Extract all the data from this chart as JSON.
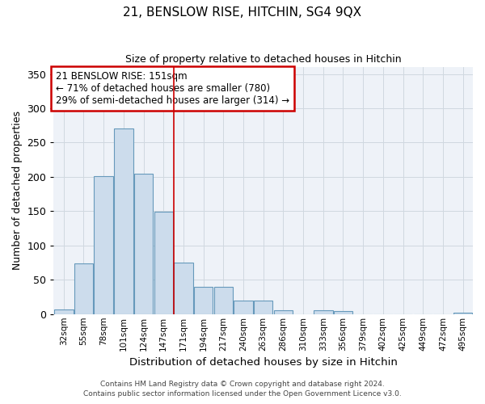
{
  "title1": "21, BENSLOW RISE, HITCHIN, SG4 9QX",
  "title2": "Size of property relative to detached houses in Hitchin",
  "xlabel": "Distribution of detached houses by size in Hitchin",
  "ylabel": "Number of detached properties",
  "categories": [
    "32sqm",
    "55sqm",
    "78sqm",
    "101sqm",
    "124sqm",
    "147sqm",
    "171sqm",
    "194sqm",
    "217sqm",
    "240sqm",
    "263sqm",
    "286sqm",
    "310sqm",
    "333sqm",
    "356sqm",
    "379sqm",
    "402sqm",
    "425sqm",
    "449sqm",
    "472sqm",
    "495sqm"
  ],
  "values": [
    7,
    74,
    201,
    271,
    205,
    149,
    75,
    40,
    40,
    20,
    20,
    6,
    0,
    6,
    4,
    0,
    0,
    0,
    0,
    0,
    2
  ],
  "bar_color": "#ccdcec",
  "bar_edge_color": "#6699bb",
  "vline_x": 5.5,
  "vline_color": "#cc0000",
  "ylim": [
    0,
    360
  ],
  "yticks": [
    0,
    50,
    100,
    150,
    200,
    250,
    300,
    350
  ],
  "annotation_title": "21 BENSLOW RISE: 151sqm",
  "annotation_line1": "← 71% of detached houses are smaller (780)",
  "annotation_line2": "29% of semi-detached houses are larger (314) →",
  "annotation_box_color": "#ffffff",
  "annotation_box_edge": "#cc0000",
  "footer1": "Contains HM Land Registry data © Crown copyright and database right 2024.",
  "footer2": "Contains public sector information licensed under the Open Government Licence v3.0.",
  "plot_bg_color": "#eef2f8",
  "fig_bg_color": "#ffffff",
  "grid_color": "#d0d8e0"
}
